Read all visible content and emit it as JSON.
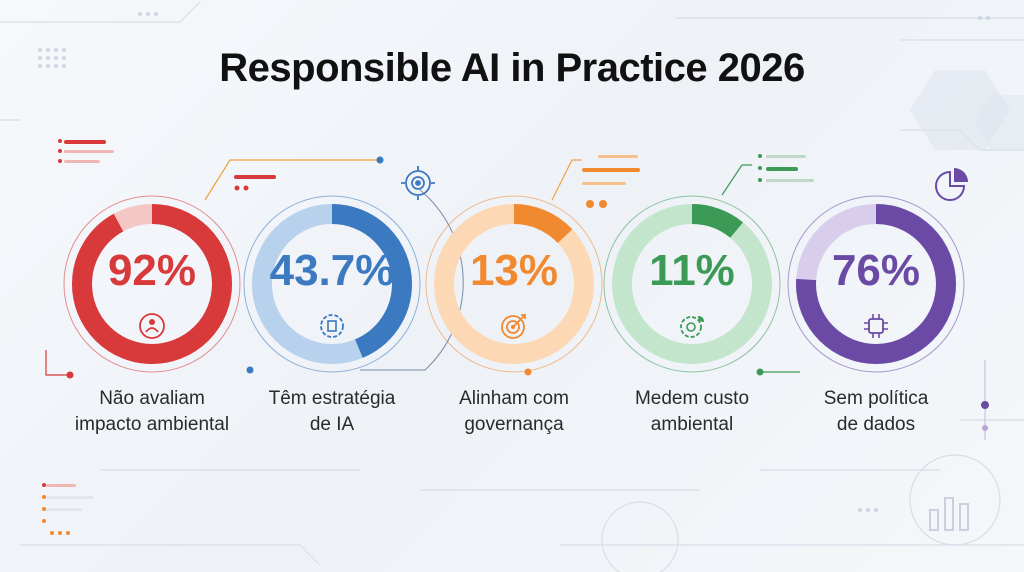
{
  "title": "Responsible AI in Practice 2026",
  "chart_data": {
    "type": "donut",
    "title": "Responsible AI in Practice 2026",
    "items": [
      {
        "value": 92,
        "display": "92%",
        "label_lines": [
          "Não avaliam",
          "impacto ambiental"
        ],
        "color": "#d8393a",
        "track": "#f4c6c4",
        "icon": "leaf-person-icon"
      },
      {
        "value": 43.7,
        "display": "43.7%",
        "label_lines": [
          "Têm estratégia",
          "de IA"
        ],
        "color": "#3b79c0",
        "track": "#b8d1ec",
        "icon": "gear-document-icon"
      },
      {
        "value": 13,
        "display": "13%",
        "label_lines": [
          "Alinham com",
          "governança"
        ],
        "color": "#f0892f",
        "track": "#fcd8b4",
        "icon": "target-arrow-icon"
      },
      {
        "value": 11,
        "display": "11%",
        "label_lines": [
          "Medem custo",
          "ambiental"
        ],
        "color": "#3c9a57",
        "track": "#c3e5cc",
        "icon": "leaf-gear-icon"
      },
      {
        "value": 76,
        "display": "76%",
        "label_lines": [
          "Sem política",
          "de dados"
        ],
        "color": "#6a4aa5",
        "track": "#d9cdec",
        "icon": "chip-icon"
      }
    ]
  }
}
